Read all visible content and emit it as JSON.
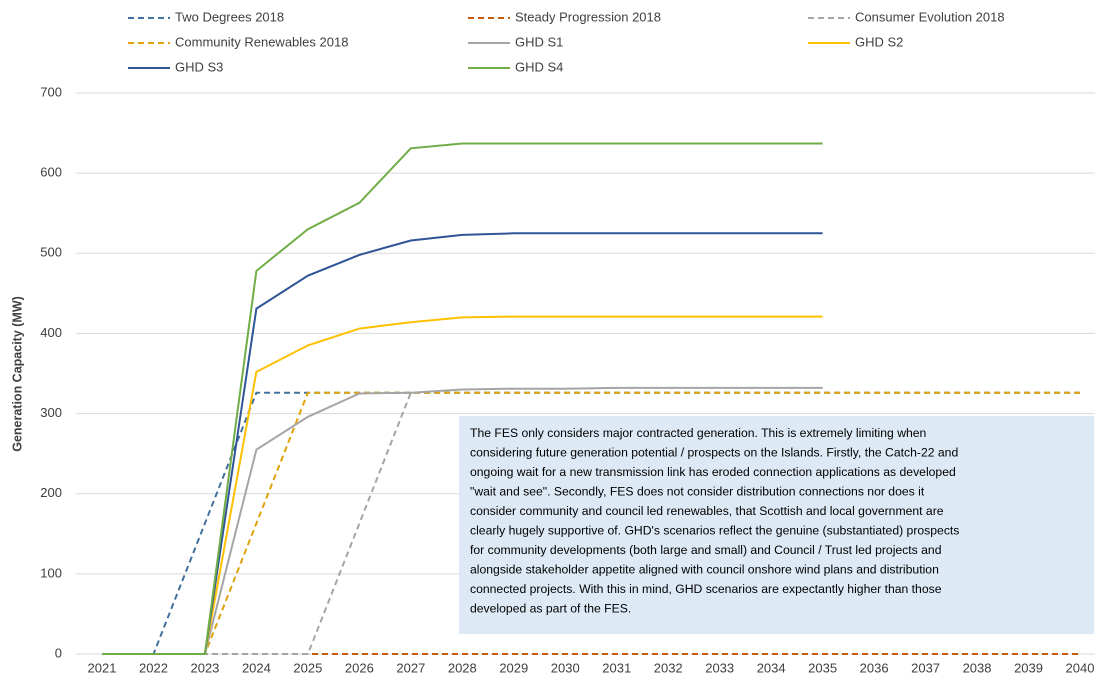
{
  "chart_data": {
    "type": "line",
    "y_label": "Generation Capacity (MW)",
    "categories": [
      "2021",
      "2022",
      "2023",
      "2024",
      "2025",
      "2026",
      "2027",
      "2028",
      "2029",
      "2030",
      "2031",
      "2032",
      "2033",
      "2034",
      "2035",
      "2036",
      "2037",
      "2038",
      "2039",
      "2040"
    ],
    "series": [
      {
        "name": "Two Degrees 2018",
        "color": "#41719c",
        "dashed": true,
        "values": [
          0,
          0,
          163,
          326,
          326,
          326,
          326,
          326,
          326,
          326,
          326,
          326,
          326,
          326,
          326,
          326,
          326,
          326,
          326,
          326
        ]
      },
      {
        "name": "Steady Progression 2018",
        "color": "#c55a11",
        "dashed": true,
        "values": [
          0,
          0,
          0,
          0,
          0,
          0,
          0,
          0,
          0,
          0,
          0,
          0,
          0,
          0,
          0,
          0,
          0,
          0,
          0,
          0
        ]
      },
      {
        "name": "Consumer Evolution 2018",
        "color": "#a5a5a5",
        "dashed": true,
        "values": [
          0,
          0,
          0,
          0,
          0,
          163,
          326,
          326,
          326,
          326,
          326,
          326,
          326,
          326,
          326,
          326,
          326,
          326,
          326,
          326
        ]
      },
      {
        "name": "Community Renewables 2018",
        "color": "#e0a30c",
        "dashed": true,
        "values": [
          0,
          0,
          0,
          163,
          326,
          326,
          326,
          326,
          326,
          326,
          326,
          326,
          326,
          326,
          326,
          326,
          326,
          326,
          326,
          326
        ]
      },
      {
        "name": "GHD S1",
        "color": "#a5a5a5",
        "dashed": false,
        "values": [
          0,
          0,
          0,
          255,
          296,
          325,
          326,
          330,
          331,
          331,
          332,
          332,
          332,
          332,
          332,
          null,
          null,
          null,
          null,
          null
        ]
      },
      {
        "name": "GHD S2",
        "color": "#ffc000",
        "dashed": false,
        "values": [
          0,
          0,
          0,
          352,
          385,
          406,
          414,
          420,
          421,
          421,
          421,
          421,
          421,
          421,
          421,
          null,
          null,
          null,
          null,
          null
        ]
      },
      {
        "name": "GHD S3",
        "color": "#2f5597",
        "dashed": false,
        "values": [
          0,
          0,
          0,
          431,
          472,
          498,
          516,
          523,
          525,
          525,
          525,
          525,
          525,
          525,
          525,
          null,
          null,
          null,
          null,
          null
        ]
      },
      {
        "name": "GHD S4",
        "color": "#70ad47",
        "dashed": false,
        "values": [
          0,
          0,
          0,
          478,
          530,
          563,
          631,
          637,
          637,
          637,
          637,
          637,
          637,
          637,
          637,
          null,
          null,
          null,
          null,
          null
        ]
      }
    ],
    "ylim": [
      0,
      700
    ],
    "yticks": [
      0,
      100,
      200,
      300,
      400,
      500,
      600,
      700
    ],
    "grid": true,
    "annotation": [
      "The FES only considers major contracted generation. This is extremely limiting when",
      "considering future generation potential / prospects on the Islands.  Firstly, the Catch-22 and",
      "ongoing wait for a new transmission link has eroded connection applications as developed",
      "\"wait and see\".  Secondly, FES does not consider distribution connections nor does it",
      "consider community  and council led renewables, that Scottish and local government are",
      "clearly hugely supportive of.  GHD's scenarios reflect the genuine (substantiated) prospects",
      "for community developments  (both large and small) and Council / Trust led projects and",
      "alongside stakeholder appetite aligned with council onshore wind plans and distribution",
      "connected projects.  With this in mind, GHD scenarios are expectantly higher than those",
      "developed as part of the FES."
    ]
  }
}
